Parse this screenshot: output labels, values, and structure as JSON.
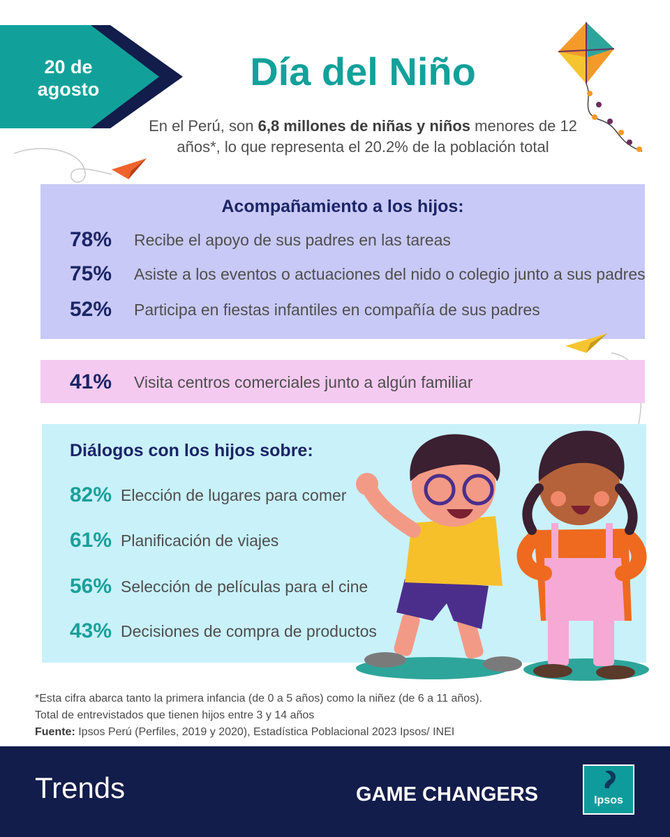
{
  "header": {
    "date_line1": "20 de",
    "date_line2": "agosto",
    "title": "Día del Niño",
    "subtitle_part1": "En el Perú, son ",
    "subtitle_bold": "6,8 millones de niñas y niños",
    "subtitle_part2": " menores de 12 años*, lo que representa el 20.2% de la población total"
  },
  "acompanamiento": {
    "title": "Acompañamiento a los hijos:",
    "items": [
      {
        "pct": "78%",
        "text": "Recibe el apoyo de sus padres en las tareas"
      },
      {
        "pct": "75%",
        "text": "Asiste a los eventos o actuaciones del nido o colegio junto a sus padres"
      },
      {
        "pct": "52%",
        "text": "Participa en fiestas infantiles en compañía de sus padres"
      }
    ]
  },
  "visita": {
    "pct": "41%",
    "text": "Visita centros comerciales junto a algún familiar"
  },
  "dialogos": {
    "title": "Diálogos con los hijos sobre:",
    "items": [
      {
        "pct": "82%",
        "text": "Elección de lugares para comer"
      },
      {
        "pct": "61%",
        "text": "Planificación de viajes"
      },
      {
        "pct": "56%",
        "text": "Selección de películas para el cine"
      },
      {
        "pct": "43%",
        "text": "Decisiones de compra de productos"
      }
    ]
  },
  "footnotes": {
    "note1": "*Esta cifra abarca tanto la primera infancia (de 0 a 5 años) como la niñez (de 6 a 11 años).",
    "note2": "Total de entrevistados que tienen hijos entre 3 y 14 años",
    "source_label": "Fuente:",
    "source_text": " Ipsos Perú (Perfiles, 2019 y 2020), Estadística Poblacional 2023 Ipsos/ INEI"
  },
  "footer": {
    "trends": "Trends",
    "game_changers": "GAME CHANGERS",
    "logo_text": "Ipsos"
  },
  "colors": {
    "teal": "#12a19a",
    "navy": "#1b2566",
    "lavender": "#c9c9f7",
    "pink": "#f5caf1",
    "light_blue": "#c9f1fa",
    "footer_navy": "#121d4b"
  },
  "icons": [
    "kite-icon",
    "paper-plane-icon",
    "children-illustration",
    "ipsos-logo-icon"
  ]
}
